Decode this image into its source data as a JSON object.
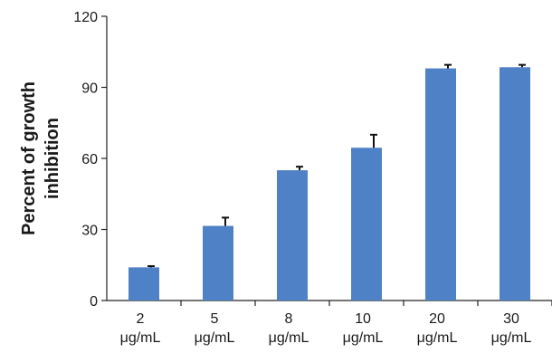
{
  "chart_data": {
    "type": "bar",
    "title": "",
    "xlabel": "",
    "ylabel_lines": [
      "Percent of growth",
      "inhibition"
    ],
    "categories": [
      [
        "2",
        "μg/mL"
      ],
      [
        "5",
        "μg/mL"
      ],
      [
        "8",
        "μg/mL"
      ],
      [
        "10",
        "μg/mL"
      ],
      [
        "20",
        "μg/mL"
      ],
      [
        "30",
        "μg/mL"
      ]
    ],
    "values": [
      14,
      31.5,
      55,
      64.5,
      98,
      98.5
    ],
    "error_upper": [
      14.5,
      35,
      56.5,
      70,
      99.5,
      99.5
    ],
    "yticks": [
      0,
      30,
      60,
      90,
      120
    ],
    "ylim": [
      0,
      120
    ],
    "grid": false,
    "bar_color": "#4f81c7",
    "error_color": "#111111"
  }
}
